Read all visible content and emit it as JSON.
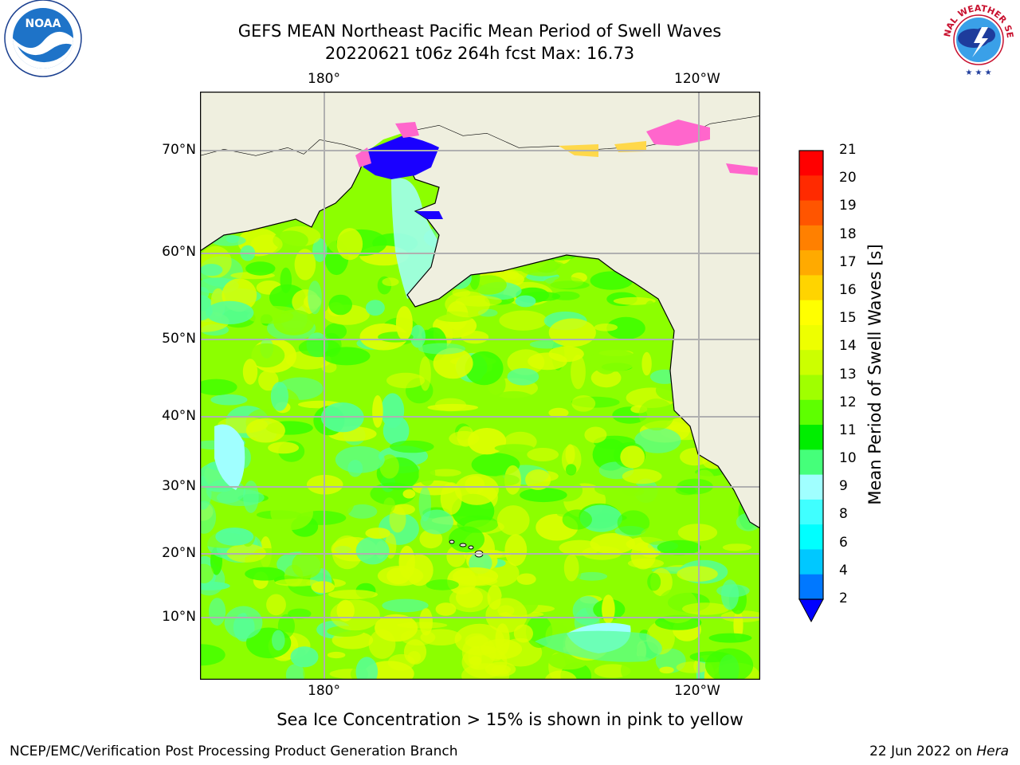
{
  "title": {
    "line1": "GEFS MEAN Northeast Pacific Mean Period of Swell Waves",
    "line2": "20220621 t06z 264h fcst   Max: 16.73"
  },
  "map": {
    "top_lon_labels": [
      "180°",
      "120°W"
    ],
    "bottom_lon_labels": [
      "180°",
      "120°W"
    ],
    "lat_labels": [
      "70°N",
      "60°N",
      "50°N",
      "40°N",
      "30°N",
      "20°N",
      "10°N"
    ],
    "colors": {
      "land": "#efefdf",
      "ocean_main": "#8cff00",
      "ocean_yellow": "#dcff00",
      "ocean_green": "#3cff00",
      "ocean_mint": "#55ff99",
      "ocean_cyan": "#a0ffff",
      "deep_blue": "#1a00ff",
      "ice_pink": "#ff66cc",
      "ice_yellow": "#ffd84a",
      "grid": "#b0b0b0"
    }
  },
  "colorbar": {
    "label": "Mean Period of Swell Waves [s]",
    "ticks": [
      "21",
      "20",
      "19",
      "18",
      "17",
      "16",
      "15",
      "14",
      "13",
      "12",
      "11",
      "10",
      "9",
      "8",
      "6",
      "4",
      "2"
    ],
    "colors": [
      "#ff0000",
      "#ff2a00",
      "#ff5500",
      "#ff8000",
      "#ffaa00",
      "#ffd400",
      "#ffff00",
      "#eeff00",
      "#ccff00",
      "#a0ff00",
      "#5eff00",
      "#00ee00",
      "#45ff7a",
      "#a0ffff",
      "#40ffff",
      "#00ffff",
      "#00c8ff",
      "#0078ff"
    ],
    "extend_color": "#0000ff"
  },
  "note": "Sea Ice Concentration > 15% is shown in pink to yellow",
  "footer": {
    "left": "NCEP/EMC/Verification Post Processing Product Generation Branch",
    "right_date": "22 Jun 2022 on ",
    "right_host": "Hera"
  },
  "logos": {
    "noaa_text": "NOAA",
    "nws_text": "NATIONAL WEATHER SERVICE"
  }
}
